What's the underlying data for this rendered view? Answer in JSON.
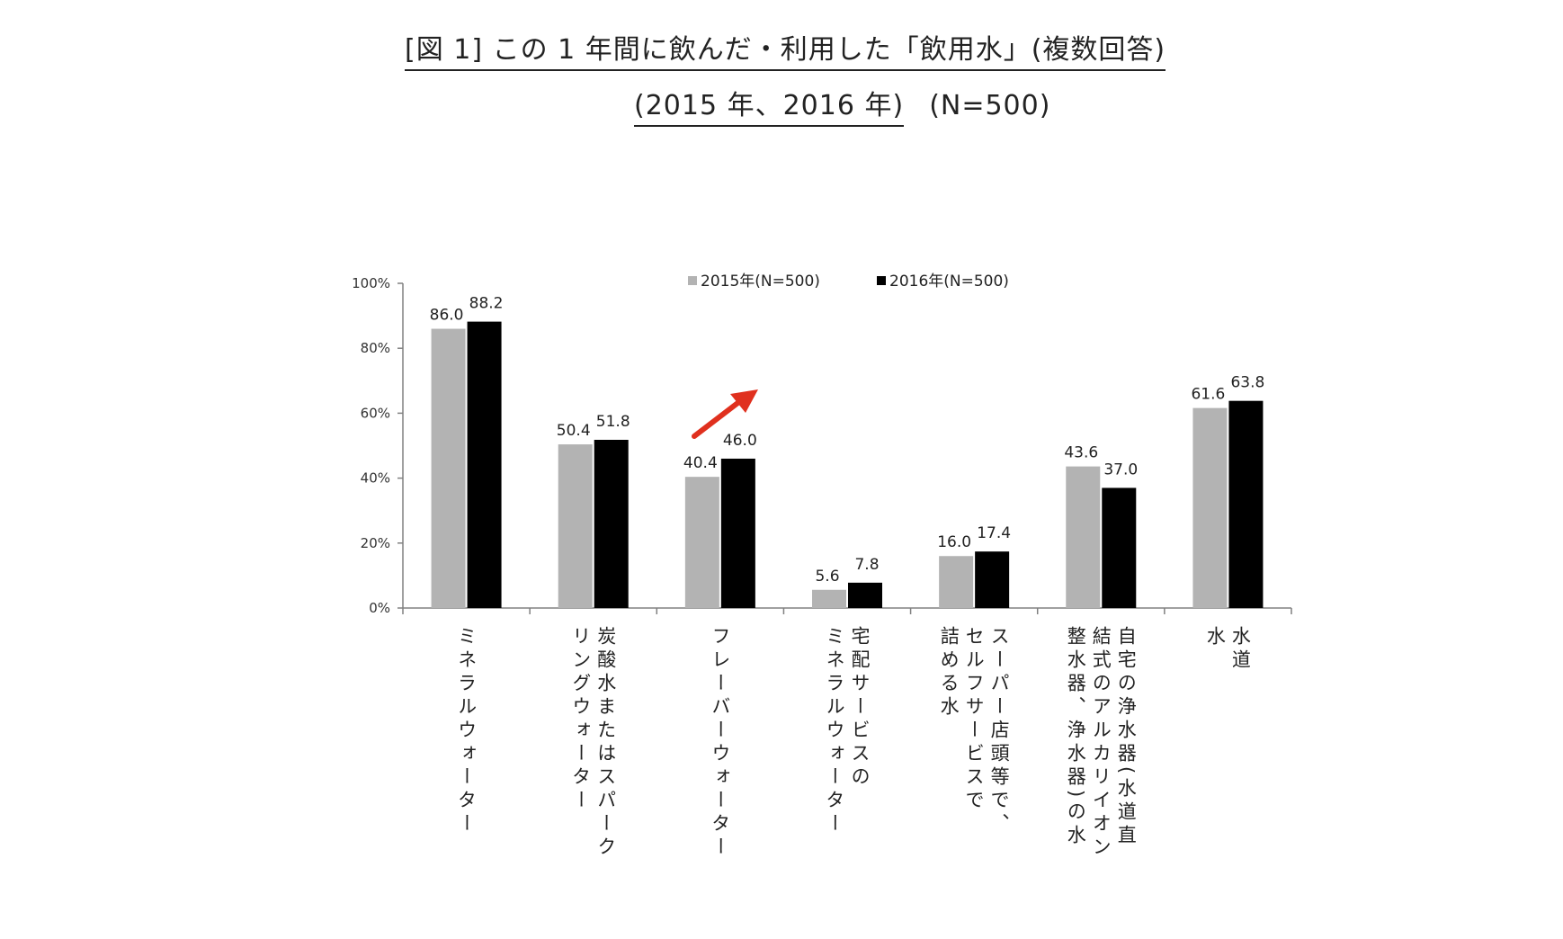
{
  "title": {
    "line1": "[図 1] この 1 年間に飲んだ・利用した「飲用水」(複数回答)",
    "line2_underlined": "(2015 年、2016 年)",
    "line2_n": "(N=500)"
  },
  "colors": {
    "s2015": "#b3b3b3",
    "s2016": "#000000",
    "axis": "#808080",
    "arrow": "#e0301e"
  },
  "chart_data": {
    "type": "bar",
    "categories": [
      "ミネラルウォーター",
      "炭酸水またはスパークリングウォーター",
      "フレーバーウォーター",
      "宅配サービスのミネラルウォーター",
      "スーパー店頭等で、セルフサービスで詰める水",
      "自宅の浄水器(水道直結式のアルカリイオン整水器、浄水器)の水",
      "水道水"
    ],
    "category_label_columns": [
      [
        "ミネラルウォーター"
      ],
      [
        "炭酸水またはスパーク",
        "リングウォーター"
      ],
      [
        "フレーバーウォーター"
      ],
      [
        "宅配サービスの",
        "ミネラルウォーター"
      ],
      [
        "スーパー店頭等で、",
        "セルフサービスで",
        "詰める水"
      ],
      [
        "自宅の浄水器(水道直",
        "結式のアルカリイオン",
        "整水器、浄水器)の水"
      ],
      [
        "水道",
        "水"
      ]
    ],
    "series": [
      {
        "name": "2015年(N=500)",
        "values": [
          86.0,
          50.4,
          40.4,
          5.6,
          16.0,
          43.6,
          61.6
        ]
      },
      {
        "name": "2016年(N=500)",
        "values": [
          88.2,
          51.8,
          46.0,
          7.8,
          17.4,
          37.0,
          63.8
        ]
      }
    ],
    "value_labels": [
      [
        "86.0",
        "50.4",
        "40.4",
        "5.6",
        "16.0",
        "43.6",
        "61.6"
      ],
      [
        "88.2",
        "51.8",
        "46.0",
        "7.8",
        "17.4",
        "37.0",
        "63.8"
      ]
    ],
    "yticks": [
      "0%",
      "20%",
      "40%",
      "60%",
      "80%",
      "100%"
    ],
    "ylim": [
      0,
      100
    ],
    "grid": false,
    "legend_position": "top-center",
    "annotation": "red upward arrow above フレーバーウォーター"
  }
}
